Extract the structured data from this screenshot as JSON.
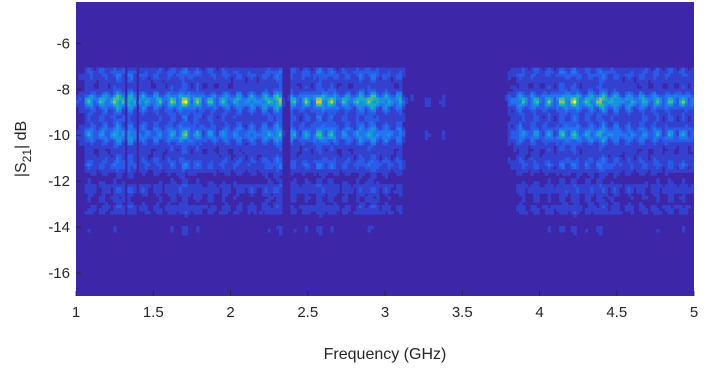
{
  "chart_data": {
    "type": "heatmap",
    "title": "",
    "xlabel": "Frequency (GHz)",
    "ylabel_main": "|S",
    "ylabel_sub": "21",
    "ylabel_tail": "| dB",
    "xlim": [
      1,
      5
    ],
    "ylim": [
      -17,
      -4.2
    ],
    "x_ticks": [
      1,
      1.5,
      2,
      2.5,
      3,
      3.5,
      4,
      4.5,
      5
    ],
    "y_ticks": [
      -16,
      -14,
      -12,
      -10,
      -8,
      -6
    ],
    "x_tick_labels": [
      "1",
      "1.5",
      "2",
      "2.5",
      "3",
      "3.5",
      "4",
      "4.5",
      "5"
    ],
    "y_tick_labels": [
      "-16",
      "-14",
      "-12",
      "-10",
      "-8",
      "-6"
    ],
    "colormap": "parula",
    "background_color": "#3d26a8",
    "active_bands_ghz": [
      [
        1.05,
        3.1
      ],
      [
        3.83,
        5.0
      ]
    ],
    "strong_rows_db": [
      -8.5,
      -10.0,
      -7.3,
      -11.3
    ],
    "bright_columns_ghz": [
      1.3,
      1.7,
      2.3,
      2.6,
      2.9,
      4.2,
      4.4
    ],
    "dark_lines_ghz": [
      1.32,
      1.4,
      2.35,
      2.38
    ]
  }
}
